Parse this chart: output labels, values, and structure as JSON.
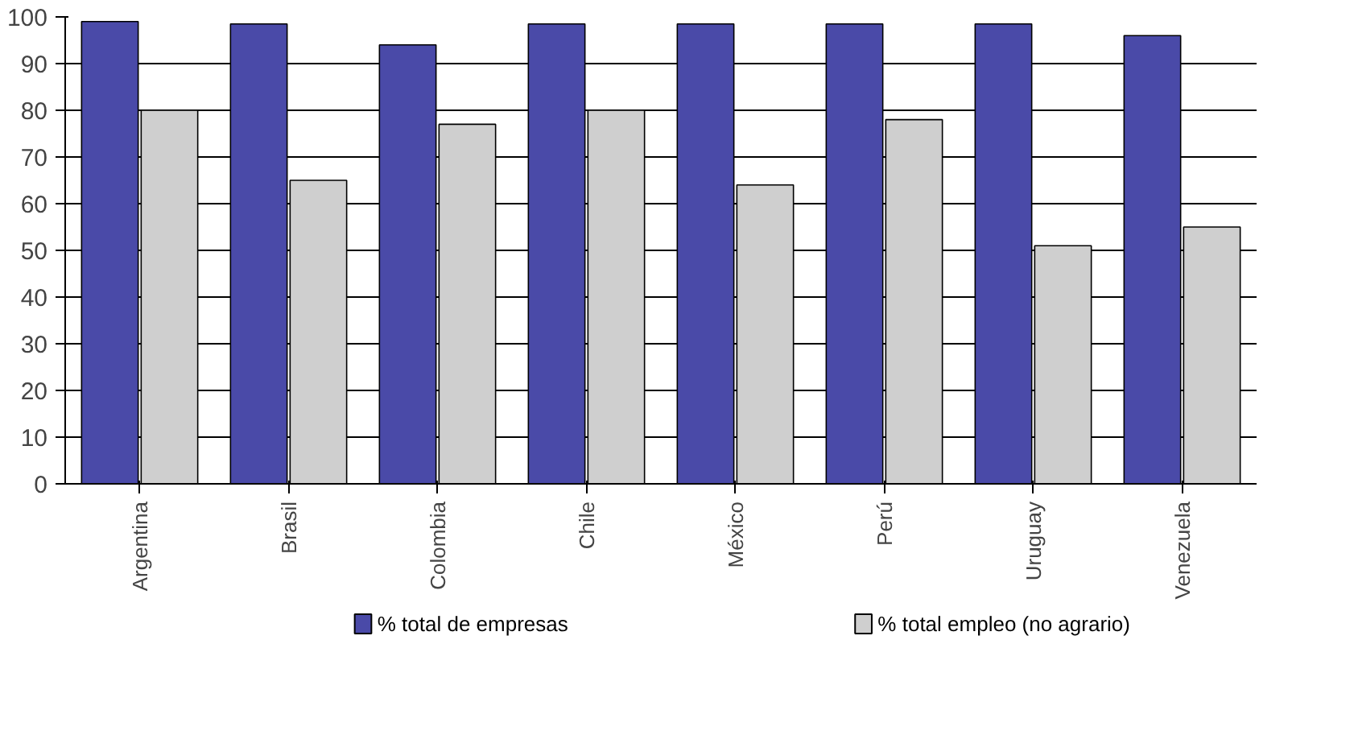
{
  "chart_data": {
    "type": "bar",
    "categories": [
      "Argentina",
      "Brasil",
      "Colombia",
      "Chile",
      "México",
      "Perú",
      "Uruguay",
      "Venezuela"
    ],
    "series": [
      {
        "name": "% total de empresas",
        "color": "#4a4aa8",
        "values": [
          99,
          98.5,
          94,
          98.5,
          98.5,
          98.5,
          98.5,
          96
        ]
      },
      {
        "name": "% total empleo (no agrario)",
        "color": "#cfcfcf",
        "values": [
          80,
          65,
          77,
          80,
          64,
          78,
          51,
          55
        ]
      }
    ],
    "ylim": [
      0,
      100
    ],
    "yticks": [
      0,
      10,
      20,
      30,
      40,
      50,
      60,
      70,
      80,
      90,
      100
    ],
    "grid": "y",
    "legend": "bottom"
  }
}
